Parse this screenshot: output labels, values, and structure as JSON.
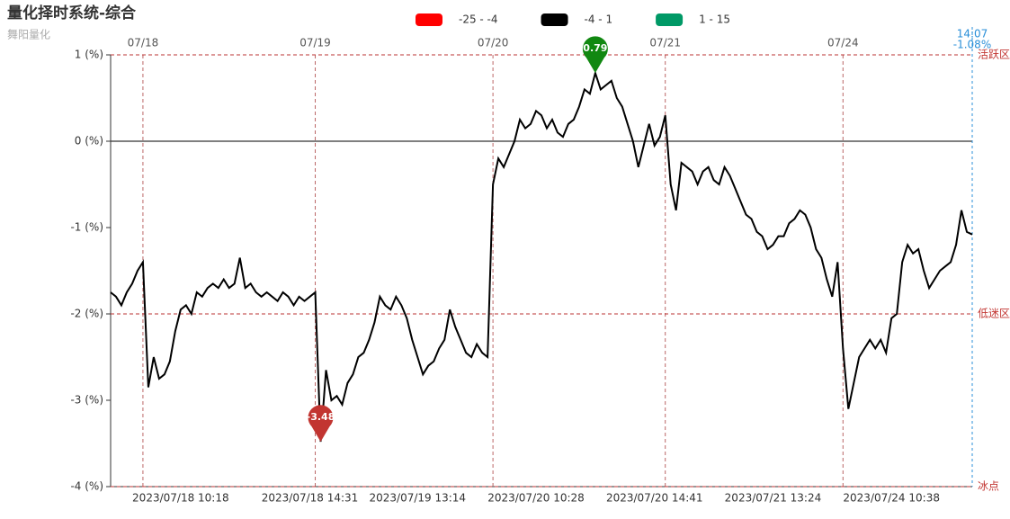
{
  "chart_data": {
    "type": "line",
    "title": "量化择时系统-综合",
    "subtitle": "舞阳量化",
    "legend": [
      {
        "min": -25,
        "max": -4,
        "label": "-25 - -4",
        "color": "#ff0000"
      },
      {
        "min": -4,
        "max": 1,
        "label": "-4 - 1",
        "color": "#000000"
      },
      {
        "min": 1,
        "max": 15,
        "label": "1 - 15",
        "color": "#009966"
      }
    ],
    "ylim": [
      -4,
      1
    ],
    "yticks": [
      {
        "value": -4,
        "label": "-4 (%)"
      },
      {
        "value": -3,
        "label": "-3 (%)"
      },
      {
        "value": -2,
        "label": "-2 (%)"
      },
      {
        "value": -1,
        "label": "-1 (%)"
      },
      {
        "value": 0,
        "label": "0 (%)"
      },
      {
        "value": 1,
        "label": "1 (%)"
      }
    ],
    "mark_lines": [
      {
        "value": 1,
        "label": "活跃区"
      },
      {
        "value": -2,
        "label": "低迷区"
      },
      {
        "value": -4,
        "label": "冰点"
      }
    ],
    "mark_points": {
      "max_color": "#118811",
      "min_color": "#c23531"
    },
    "end_label": {
      "time": "14:07",
      "value_label": "-1.08%"
    },
    "categories": [
      null,
      null,
      null,
      null,
      null,
      null,
      null,
      null,
      null,
      null,
      null,
      null,
      null,
      "2023/07/18 10:18",
      null,
      null,
      null,
      null,
      null,
      null,
      null,
      null,
      null,
      null,
      null,
      null,
      null,
      null,
      null,
      null,
      null,
      null,
      null,
      null,
      null,
      null,
      null,
      "2023/07/18 14:31",
      null,
      null,
      null,
      null,
      null,
      null,
      null,
      null,
      null,
      null,
      null,
      null,
      null,
      null,
      null,
      null,
      null,
      null,
      null,
      "2023/07/19 13:14",
      null,
      null,
      null,
      null,
      null,
      null,
      null,
      null,
      null,
      null,
      null,
      null,
      null,
      null,
      null,
      null,
      null,
      null,
      null,
      null,
      null,
      "2023/07/20 10:28",
      null,
      null,
      null,
      null,
      null,
      null,
      null,
      null,
      null,
      null,
      null,
      null,
      null,
      null,
      null,
      null,
      null,
      null,
      null,
      null,
      null,
      "2023/07/20 14:41",
      null,
      null,
      null,
      null,
      null,
      null,
      null,
      null,
      null,
      null,
      null,
      null,
      null,
      null,
      null,
      null,
      null,
      null,
      null,
      null,
      null,
      "2023/07/21 13:24",
      null,
      null,
      null,
      null,
      null,
      null,
      null,
      null,
      null,
      null,
      null,
      null,
      null,
      null,
      null,
      null,
      null,
      null,
      null,
      null,
      null,
      "2023/07/24 10:38",
      null,
      null,
      null,
      null,
      null,
      null,
      null,
      null,
      null,
      null,
      null,
      null,
      null,
      null,
      null
    ],
    "top_categories": [
      null,
      null,
      null,
      null,
      null,
      null,
      "07/18",
      null,
      null,
      null,
      null,
      null,
      null,
      null,
      null,
      null,
      null,
      null,
      null,
      null,
      null,
      null,
      null,
      null,
      null,
      null,
      null,
      null,
      null,
      null,
      null,
      null,
      null,
      null,
      null,
      null,
      null,
      null,
      "07/19",
      null,
      null,
      null,
      null,
      null,
      null,
      null,
      null,
      null,
      null,
      null,
      null,
      null,
      null,
      null,
      null,
      null,
      null,
      null,
      null,
      null,
      null,
      null,
      null,
      null,
      null,
      null,
      null,
      null,
      null,
      null,
      null,
      "07/20",
      null,
      null,
      null,
      null,
      null,
      null,
      null,
      null,
      null,
      null,
      null,
      null,
      null,
      null,
      null,
      null,
      null,
      null,
      null,
      null,
      null,
      null,
      null,
      null,
      null,
      null,
      null,
      null,
      null,
      null,
      null,
      "07/21",
      null,
      null,
      null,
      null,
      null,
      null,
      null,
      null,
      null,
      null,
      null,
      null,
      null,
      null,
      null,
      null,
      null,
      null,
      null,
      null,
      null,
      null,
      null,
      null,
      null,
      null,
      null,
      null,
      null,
      null,
      null,
      null,
      "07/24",
      null,
      null,
      null,
      null,
      null,
      null,
      null,
      null,
      null,
      null,
      null,
      null,
      null,
      null,
      null,
      null,
      null,
      null,
      null,
      null,
      null,
      null,
      null,
      null
    ],
    "series": [
      {
        "name": "综合",
        "color": "#000000",
        "values": [
          -1.75,
          -1.8,
          -1.9,
          -1.75,
          -1.65,
          -1.5,
          -1.4,
          -2.85,
          -2.5,
          -2.75,
          -2.7,
          -2.55,
          -2.2,
          -1.95,
          -1.9,
          -2.0,
          -1.75,
          -1.8,
          -1.7,
          -1.65,
          -1.7,
          -1.6,
          -1.7,
          -1.65,
          -1.35,
          -1.7,
          -1.65,
          -1.75,
          -1.8,
          -1.75,
          -1.8,
          -1.85,
          -1.75,
          -1.8,
          -1.9,
          -1.8,
          -1.85,
          -1.8,
          -1.75,
          -3.48,
          -2.65,
          -3.0,
          -2.95,
          -3.05,
          -2.8,
          -2.7,
          -2.5,
          -2.45,
          -2.3,
          -2.1,
          -1.8,
          -1.9,
          -1.95,
          -1.8,
          -1.9,
          -2.05,
          -2.3,
          -2.5,
          -2.7,
          -2.6,
          -2.55,
          -2.4,
          -2.3,
          -1.95,
          -2.15,
          -2.3,
          -2.45,
          -2.5,
          -2.35,
          -2.45,
          -2.5,
          -0.5,
          -0.2,
          -0.3,
          -0.15,
          0.0,
          0.25,
          0.15,
          0.2,
          0.35,
          0.3,
          0.15,
          0.25,
          0.1,
          0.05,
          0.2,
          0.25,
          0.4,
          0.6,
          0.55,
          0.79,
          0.6,
          0.65,
          0.7,
          0.5,
          0.4,
          0.2,
          0.0,
          -0.3,
          -0.05,
          0.2,
          -0.05,
          0.05,
          0.3,
          -0.5,
          -0.8,
          -0.25,
          -0.3,
          -0.35,
          -0.5,
          -0.35,
          -0.3,
          -0.45,
          -0.5,
          -0.3,
          -0.4,
          -0.55,
          -0.7,
          -0.85,
          -0.9,
          -1.05,
          -1.1,
          -1.25,
          -1.2,
          -1.1,
          -1.1,
          -0.95,
          -0.9,
          -0.8,
          -0.85,
          -1.0,
          -1.25,
          -1.35,
          -1.6,
          -1.8,
          -1.4,
          -2.4,
          -3.1,
          -2.8,
          -2.5,
          -2.4,
          -2.3,
          -2.4,
          -2.3,
          -2.45,
          -2.05,
          -2.0,
          -1.4,
          -1.2,
          -1.3,
          -1.25,
          -1.5,
          -1.7,
          -1.6,
          -1.5,
          -1.45,
          -1.4,
          -1.2,
          -0.8,
          -1.05,
          -1.08
        ]
      }
    ]
  }
}
